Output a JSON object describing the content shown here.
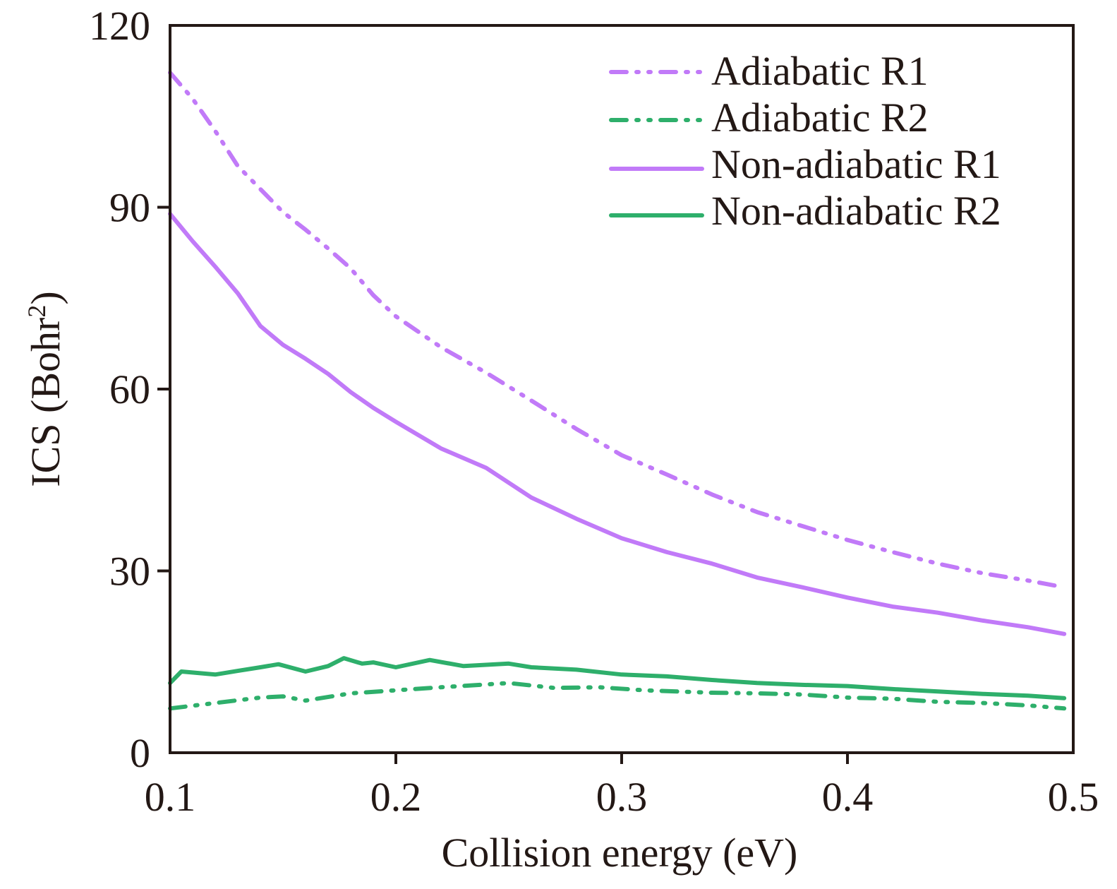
{
  "chart_data": {
    "type": "line",
    "title": "",
    "xlabel": "Collision energy (eV)",
    "ylabel": "ICS (Bohr",
    "ylabel_superscript": "2",
    "ylabel_suffix": ")",
    "xlim": [
      0.1,
      0.5
    ],
    "ylim": [
      0,
      120
    ],
    "xticks": [
      0.1,
      0.2,
      0.3,
      0.4,
      0.5
    ],
    "xtick_labels": [
      "0.1",
      "0.2",
      "0.3",
      "0.4",
      "0.5"
    ],
    "yticks": [
      0,
      30,
      60,
      90,
      120
    ],
    "ytick_labels": [
      "0",
      "30",
      "60",
      "90",
      "120"
    ],
    "grid": false,
    "legend_position": "top-right",
    "colors": {
      "R1": "#c17af8",
      "R2": "#2eaf6b",
      "axis": "#231815"
    },
    "series": [
      {
        "name": "Adiabatic R1",
        "style": "dash-dot-dot",
        "color": "#c17af8",
        "x": [
          0.1,
          0.11,
          0.12,
          0.13,
          0.14,
          0.15,
          0.16,
          0.17,
          0.18,
          0.19,
          0.2,
          0.22,
          0.24,
          0.26,
          0.28,
          0.3,
          0.32,
          0.34,
          0.36,
          0.38,
          0.4,
          0.42,
          0.44,
          0.46,
          0.48,
          0.496
        ],
        "y": [
          112.2,
          107.9,
          102.6,
          96.8,
          93.0,
          89.2,
          86.3,
          83.2,
          79.9,
          75.5,
          72.0,
          66.9,
          62.7,
          58.1,
          53.4,
          49.1,
          45.9,
          42.6,
          39.7,
          37.4,
          35.1,
          33.1,
          31.2,
          29.6,
          28.4,
          27.3
        ]
      },
      {
        "name": "Adiabatic R2",
        "style": "dash-dot-dot",
        "color": "#2eaf6b",
        "x": [
          0.1,
          0.12,
          0.14,
          0.15,
          0.16,
          0.18,
          0.2,
          0.22,
          0.25,
          0.27,
          0.29,
          0.31,
          0.34,
          0.36,
          0.38,
          0.4,
          0.42,
          0.44,
          0.46,
          0.48,
          0.496
        ],
        "y": [
          7.3,
          8.2,
          9.1,
          9.3,
          8.6,
          9.8,
          10.3,
          10.8,
          11.5,
          10.7,
          10.8,
          10.3,
          9.9,
          9.8,
          9.6,
          9.1,
          8.9,
          8.4,
          8.2,
          7.8,
          7.3
        ]
      },
      {
        "name": "Non-adiabatic R1",
        "style": "solid",
        "color": "#c17af8",
        "x": [
          0.1,
          0.11,
          0.12,
          0.13,
          0.14,
          0.15,
          0.16,
          0.17,
          0.18,
          0.19,
          0.2,
          0.22,
          0.24,
          0.26,
          0.28,
          0.3,
          0.32,
          0.34,
          0.36,
          0.38,
          0.4,
          0.42,
          0.44,
          0.46,
          0.48,
          0.496
        ],
        "y": [
          88.9,
          84.4,
          80.2,
          75.8,
          70.4,
          67.3,
          65.0,
          62.5,
          59.5,
          56.9,
          54.6,
          50.2,
          47.0,
          42.1,
          38.6,
          35.4,
          33.1,
          31.2,
          28.9,
          27.3,
          25.6,
          24.1,
          23.1,
          21.8,
          20.7,
          19.6
        ]
      },
      {
        "name": "Non-adiabatic R2",
        "style": "solid",
        "color": "#2eaf6b",
        "x": [
          0.1,
          0.105,
          0.12,
          0.13,
          0.14,
          0.148,
          0.16,
          0.17,
          0.177,
          0.185,
          0.19,
          0.2,
          0.215,
          0.23,
          0.25,
          0.26,
          0.28,
          0.3,
          0.32,
          0.34,
          0.36,
          0.38,
          0.4,
          0.42,
          0.44,
          0.46,
          0.48,
          0.496
        ],
        "y": [
          11.5,
          13.4,
          12.9,
          13.5,
          14.1,
          14.6,
          13.4,
          14.3,
          15.6,
          14.7,
          14.9,
          14.1,
          15.3,
          14.3,
          14.7,
          14.1,
          13.7,
          12.9,
          12.6,
          12.0,
          11.5,
          11.2,
          11.0,
          10.5,
          10.1,
          9.7,
          9.4,
          9.0
        ]
      }
    ]
  }
}
